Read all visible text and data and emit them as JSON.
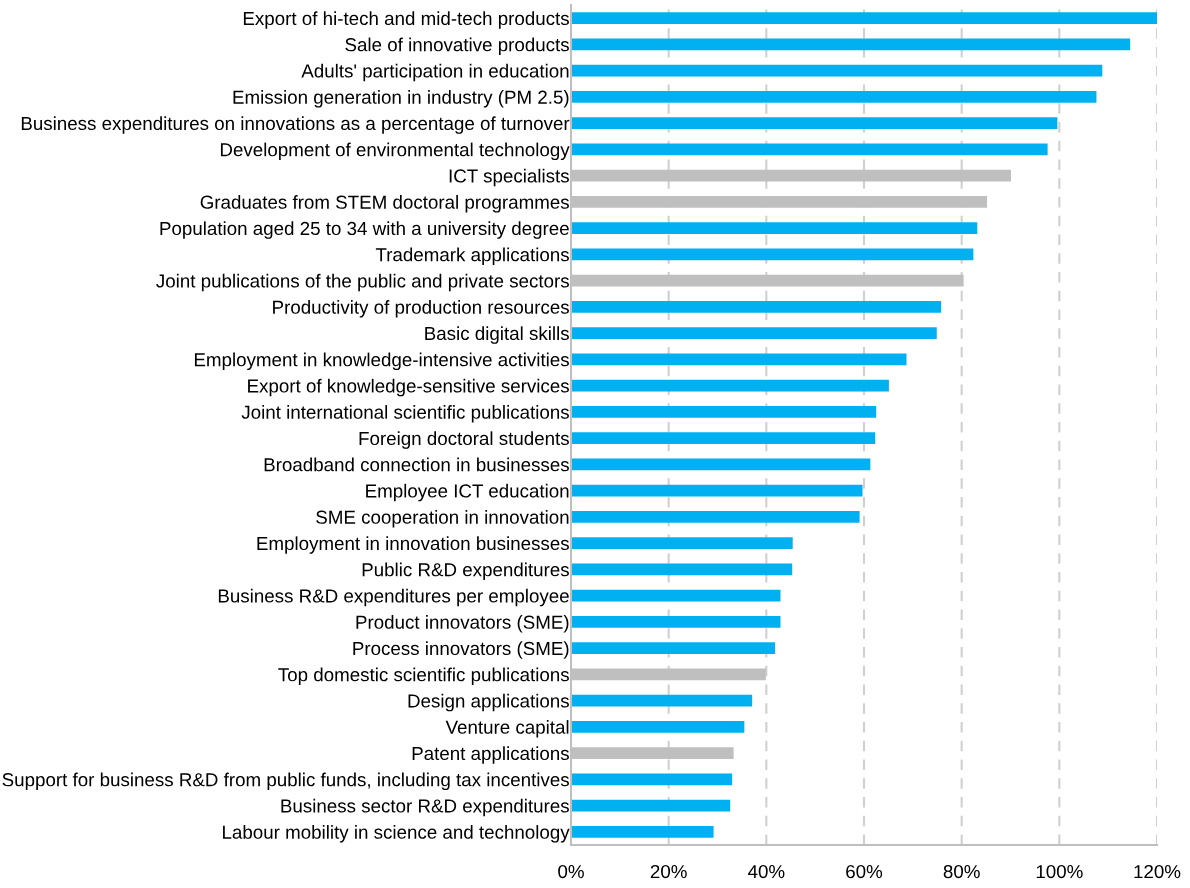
{
  "chart_data": {
    "type": "bar",
    "orientation": "horizontal",
    "categories": [
      "Export of hi-tech and mid-tech products",
      "Sale of innovative products",
      "Adults' participation in education",
      "Emission generation in industry (PM 2.5)",
      "Business expenditures on innovations as a percentage of turnover",
      "Development of environmental technology",
      "ICT specialists",
      "Graduates from STEM doctoral programmes",
      "Population aged 25 to 34 with a university degree",
      "Trademark applications",
      "Joint publications of the public and private sectors",
      "Productivity of production resources",
      "Basic digital skills",
      "Employment in knowledge-intensive activities",
      "Export of knowledge-sensitive services",
      "Joint international scientific publications",
      "Foreign doctoral students",
      "Broadband connection in businesses",
      "Employee ICT education",
      "SME cooperation in innovation",
      "Employment in innovation businesses",
      "Public R&D expenditures",
      "Business R&D expenditures per employee",
      "Product innovators (SME)",
      "Process innovators (SME)",
      "Top domestic scientific publications",
      "Design applications",
      "Venture capital",
      "Patent applications",
      "Support for business R&D from public funds, including tax incentives",
      "Business sector R&D expenditures",
      "Labour mobility in science and technology"
    ],
    "values": [
      120,
      114.5,
      108.8,
      107.6,
      99.6,
      97.6,
      90.1,
      85.2,
      83.2,
      82.4,
      80.4,
      75.8,
      74.9,
      68.7,
      65.1,
      62.5,
      62.3,
      61.3,
      59.7,
      59.1,
      45.4,
      45.3,
      42.9,
      42.9,
      41.8,
      39.9,
      37.1,
      35.5,
      33.3,
      33.0,
      32.6,
      29.2
    ],
    "colors": [
      "#00b0f0",
      "#00b0f0",
      "#00b0f0",
      "#00b0f0",
      "#00b0f0",
      "#00b0f0",
      "#bfbfbf",
      "#bfbfbf",
      "#00b0f0",
      "#00b0f0",
      "#bfbfbf",
      "#00b0f0",
      "#00b0f0",
      "#00b0f0",
      "#00b0f0",
      "#00b0f0",
      "#00b0f0",
      "#00b0f0",
      "#00b0f0",
      "#00b0f0",
      "#00b0f0",
      "#00b0f0",
      "#00b0f0",
      "#00b0f0",
      "#00b0f0",
      "#bfbfbf",
      "#00b0f0",
      "#00b0f0",
      "#bfbfbf",
      "#00b0f0",
      "#00b0f0",
      "#00b0f0"
    ],
    "xlim": [
      0,
      120
    ],
    "xticks": [
      {
        "value": 0,
        "label": "0%"
      },
      {
        "value": 20,
        "label": "20%"
      },
      {
        "value": 40,
        "label": "40%"
      },
      {
        "value": 60,
        "label": "60%"
      },
      {
        "value": 80,
        "label": "80%"
      },
      {
        "value": 100,
        "label": "100%"
      },
      {
        "value": 120,
        "label": "120%"
      }
    ],
    "grid": "x"
  }
}
